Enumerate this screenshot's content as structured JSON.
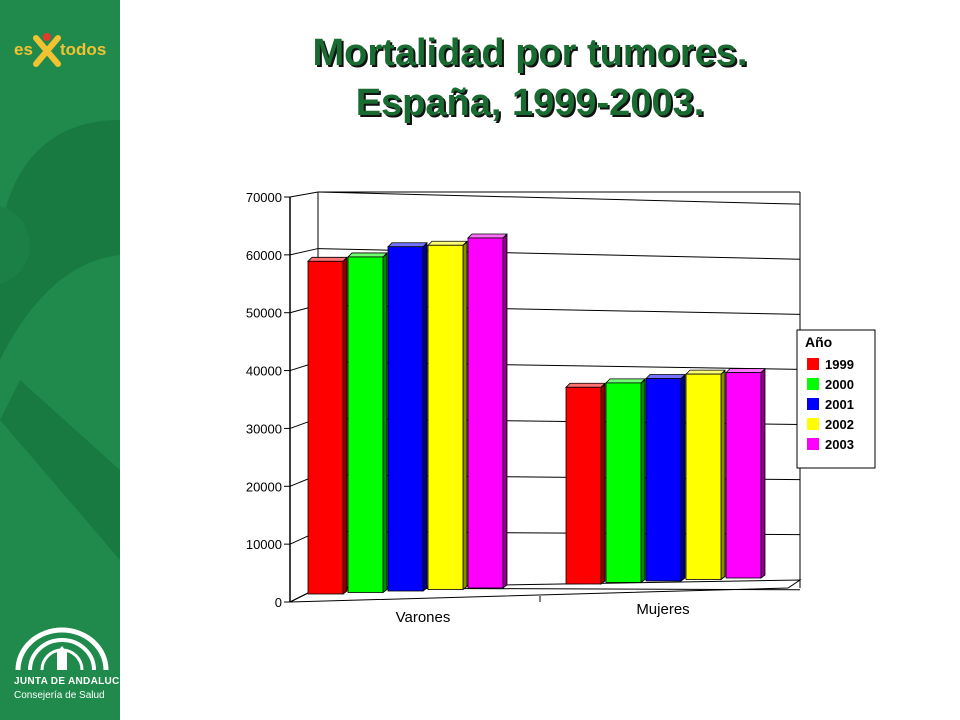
{
  "title_line1": "Mortalidad por tumores.",
  "title_line2": "España, 1999-2003.",
  "logos": {
    "top_es": "es",
    "top_todos": "todos",
    "bottom_line1": "JUNTA DE ANDALUCIA",
    "bottom_line2": "Consejería de Salud"
  },
  "colors": {
    "sidebar": "#1f8a4c",
    "title": "#1a6b32"
  },
  "chart_data": {
    "type": "bar",
    "categories": [
      "Varones",
      "Mujeres"
    ],
    "ylim": [
      0,
      70000
    ],
    "yticks": [
      "0",
      "10000",
      "20000",
      "30000",
      "40000",
      "50000",
      "60000",
      "70000"
    ],
    "legend_title": "Año",
    "legend_position": "right",
    "grid": true,
    "series": [
      {
        "name": "1999",
        "color": "#ff0000",
        "values": [
          57500,
          34000
        ]
      },
      {
        "name": "2000",
        "color": "#00ff00",
        "values": [
          58000,
          34500
        ]
      },
      {
        "name": "2001",
        "color": "#0000ff",
        "values": [
          59500,
          35000
        ]
      },
      {
        "name": "2002",
        "color": "#ffff00",
        "values": [
          59500,
          35500
        ]
      },
      {
        "name": "2003",
        "color": "#ff00ff",
        "values": [
          60500,
          35500
        ]
      }
    ]
  }
}
